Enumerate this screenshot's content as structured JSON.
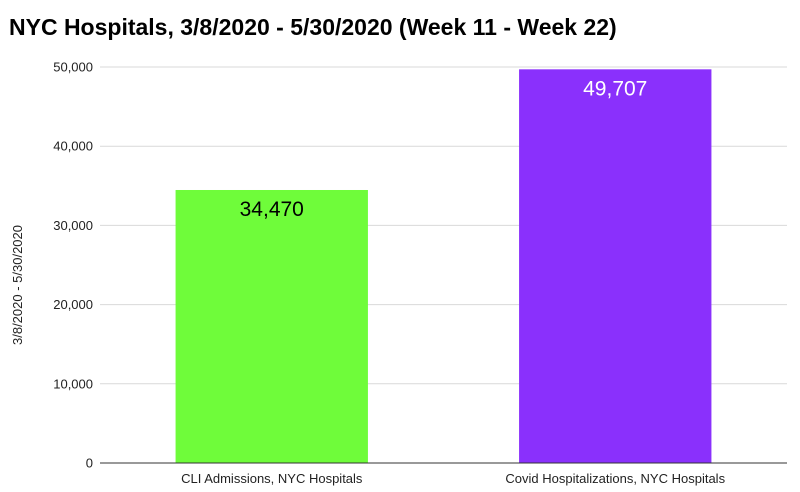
{
  "chart_data": {
    "type": "bar",
    "title": "NYC Hospitals, 3/8/2020 - 5/30/2020 (Week 11 - Week 22)",
    "xlabel": "",
    "ylabel": "3/8/2020 - 5/30/2020",
    "categories": [
      "CLI Admissions, NYC Hospitals",
      "Covid Hospitalizations, NYC Hospitals"
    ],
    "values": [
      34470,
      49707
    ],
    "data_labels": [
      "34,470",
      "49,707"
    ],
    "bar_colors": [
      "#6ffc3a",
      "#8a30fc"
    ],
    "data_label_colors": [
      "#000000",
      "#ffffff"
    ],
    "ylim": [
      0,
      50000
    ],
    "yticks": [
      0,
      10000,
      20000,
      30000,
      40000,
      50000
    ],
    "ytick_labels": [
      "0",
      "10,000",
      "20,000",
      "30,000",
      "40,000",
      "50,000"
    ],
    "grid": true,
    "legend": "none"
  }
}
